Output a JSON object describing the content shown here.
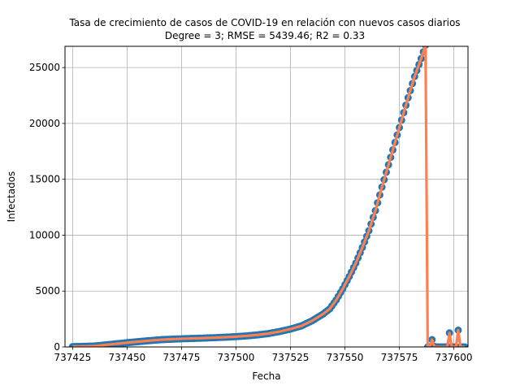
{
  "chart_data": {
    "type": "scatter",
    "title": "Tasa de crecimiento de casos de COVID-19 en relación con nuevos casos diarios",
    "subtitle": "Degree = 3; RMSE = 5439.46; R2 = 0.33",
    "xlabel": "Fecha",
    "ylabel": "Infectados",
    "xlim": [
      737421.5,
      737606.5
    ],
    "ylim": [
      0,
      26900
    ],
    "xticks": [
      737425,
      737450,
      737475,
      737500,
      737525,
      737550,
      737575,
      737600
    ],
    "yticks": [
      0,
      5000,
      10000,
      15000,
      20000,
      25000
    ],
    "grid": true,
    "colors": {
      "points": "#1f77b4",
      "line": "#ff7f50"
    },
    "anchors": [
      [
        737425,
        30
      ],
      [
        737430,
        50
      ],
      [
        737435,
        80
      ],
      [
        737440,
        180
      ],
      [
        737445,
        280
      ],
      [
        737450,
        380
      ],
      [
        737455,
        470
      ],
      [
        737460,
        560
      ],
      [
        737465,
        640
      ],
      [
        737470,
        690
      ],
      [
        737475,
        730
      ],
      [
        737480,
        760
      ],
      [
        737485,
        790
      ],
      [
        737490,
        830
      ],
      [
        737495,
        870
      ],
      [
        737500,
        920
      ],
      [
        737505,
        990
      ],
      [
        737510,
        1080
      ],
      [
        737515,
        1200
      ],
      [
        737520,
        1380
      ],
      [
        737525,
        1600
      ],
      [
        737530,
        1880
      ],
      [
        737535,
        2350
      ],
      [
        737540,
        2950
      ],
      [
        737543,
        3400
      ],
      [
        737546,
        4200
      ],
      [
        737549,
        5200
      ],
      [
        737552,
        6300
      ],
      [
        737555,
        7500
      ],
      [
        737558,
        8900
      ],
      [
        737561,
        10400
      ],
      [
        737564,
        12200
      ],
      [
        737567,
        14300
      ],
      [
        737570,
        16300
      ],
      [
        737573,
        18300
      ],
      [
        737576,
        20300
      ],
      [
        737579,
        22300
      ],
      [
        737582,
        24200
      ],
      [
        737585,
        25800
      ],
      [
        737587,
        27000
      ]
    ],
    "tail_points": [
      [
        737588,
        0
      ],
      [
        737589,
        20
      ],
      [
        737590,
        650
      ],
      [
        737591,
        50
      ],
      [
        737592,
        0
      ],
      [
        737593,
        0
      ],
      [
        737594,
        0
      ],
      [
        737595,
        0
      ],
      [
        737596,
        0
      ],
      [
        737597,
        30
      ],
      [
        737598,
        1250
      ],
      [
        737599,
        0
      ],
      [
        737600,
        0
      ],
      [
        737601,
        0
      ],
      [
        737602,
        1500
      ],
      [
        737603,
        0
      ],
      [
        737604,
        0
      ],
      [
        737605,
        0
      ]
    ]
  }
}
